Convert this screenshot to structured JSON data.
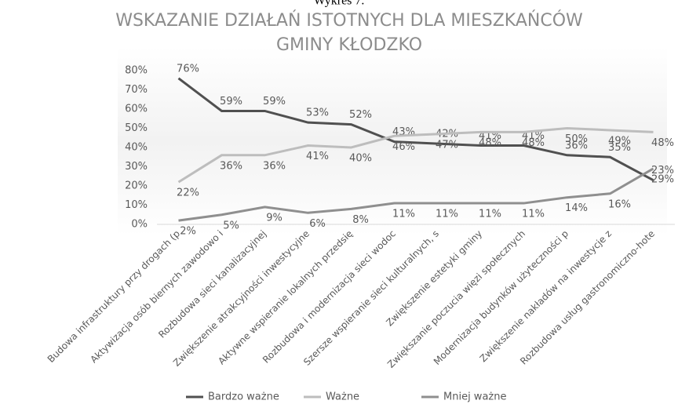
{
  "chart_data": {
    "type": "line",
    "caption": "Wykres 7.",
    "title": [
      "WSKAZANIE DZIAŁAŃ ISTOTNYCH DLA MIESZKAŃCÓW",
      "GMINY KŁODZKO"
    ],
    "categories": [
      "Budowa infrastruktury przy drogach (p",
      "Aktywizacja osób biernych zawodowo i",
      "Rozbudowa sieci kanalizacyjnej",
      "Zwiększenie atrakcyjności inwestycyjne",
      "Aktywne wspieranie lokalnych przedsię",
      "Rozbudowa i modernizacja sieci wodoc",
      "Szersze wspieranie sieci kulturalnych, s",
      "Zwiększenie estetyki gminy",
      "Zwiększanie poczucia więzi społecznych",
      "Modernizacja budynków użyteczności p",
      "Zwiększenie nakładów na inwestycje z",
      "Rozbudowa usług gastronomiczno-hote"
    ],
    "series": [
      {
        "name": "Bardzo ważne",
        "color": "#505050",
        "values": [
          76,
          59,
          59,
          53,
          52,
          43,
          42,
          41,
          41,
          36,
          35,
          23
        ],
        "value_labels": [
          "76%",
          "59%",
          "59%",
          "53%",
          "52%",
          "43%",
          "42%",
          "41%",
          "41%",
          "36%",
          "35%",
          "23%"
        ]
      },
      {
        "name": "Ważne",
        "color": "#bdbdbd",
        "values": [
          22,
          36,
          36,
          41,
          40,
          46,
          47,
          48,
          48,
          50,
          49,
          48
        ],
        "value_labels": [
          "22%",
          "36%",
          "36%",
          "41%",
          "40%",
          "46%",
          "47%",
          "48%",
          "48%",
          "50%",
          "49%",
          "48%"
        ]
      },
      {
        "name": "Mniej ważne",
        "color": "#8f8f8f",
        "values": [
          2,
          5,
          9,
          6,
          8,
          11,
          11,
          11,
          11,
          14,
          16,
          29
        ],
        "value_labels": [
          "2%",
          "5%",
          "9%",
          "6%",
          "8%",
          "11%",
          "11%",
          "11%",
          "11%",
          "14%",
          "16%",
          "29%"
        ]
      }
    ],
    "ylim": [
      0,
      90
    ],
    "yticks": [
      {
        "value": 0,
        "label": "0%"
      },
      {
        "value": 10,
        "label": "10%"
      },
      {
        "value": 20,
        "label": "20%"
      },
      {
        "value": 30,
        "label": "30%"
      },
      {
        "value": 40,
        "label": "40%"
      },
      {
        "value": 50,
        "label": "50%"
      },
      {
        "value": 60,
        "label": "60%"
      },
      {
        "value": 70,
        "label": "70%"
      },
      {
        "value": 80,
        "label": "80%"
      }
    ],
    "legend": "bottom"
  }
}
